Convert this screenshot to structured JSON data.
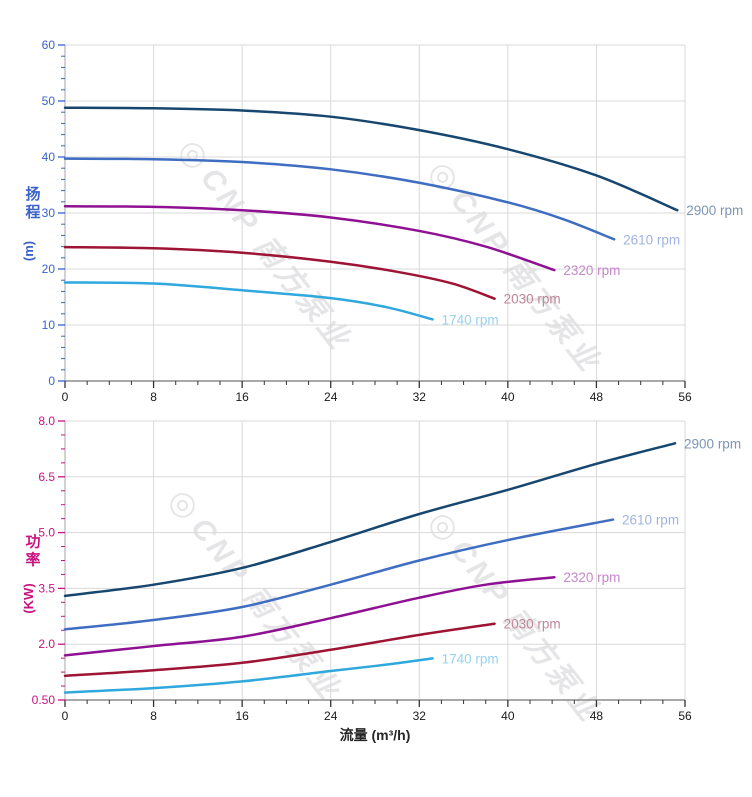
{
  "watermark": {
    "logo_glyph": "◎",
    "text": "CNP 南方泵业"
  },
  "chart_data": [
    {
      "type": "line",
      "title": "",
      "xlabel": "",
      "ylabel": "扬程",
      "ylabel_unit": "(m)",
      "xlim": [
        0,
        56
      ],
      "ylim": [
        0,
        60
      ],
      "grid": true,
      "legend_position": "curve-end-labels",
      "axis_accent": "#3a62c8",
      "x_tick_color": "#1a1a1a",
      "x_major_ticks": [
        0,
        8,
        16,
        24,
        32,
        40,
        48,
        56
      ],
      "x_tick_labels": [
        "0",
        "8",
        "16",
        "24",
        "32",
        "40",
        "48",
        "56"
      ],
      "x_minor_step": 2,
      "y_major_ticks": [
        0,
        10,
        20,
        30,
        40,
        50,
        60
      ],
      "y_tick_labels": [
        "0",
        "10",
        "20",
        "30",
        "40",
        "50",
        "60"
      ],
      "y_minor_step": 2,
      "series": [
        {
          "name": "2900 rpm",
          "color": "#17476f",
          "label_color": "#7d95b5",
          "points": [
            [
              0,
              48.8
            ],
            [
              8,
              48.7
            ],
            [
              16,
              48.3
            ],
            [
              24,
              47.2
            ],
            [
              32,
              44.8
            ],
            [
              40,
              41.4
            ],
            [
              48,
              36.7
            ],
            [
              55.3,
              30.5
            ]
          ]
        },
        {
          "name": "2610 rpm",
          "color": "#3f6dc1",
          "label_color": "#9fb3e1",
          "points": [
            [
              0,
              39.7
            ],
            [
              8,
              39.6
            ],
            [
              16,
              39.1
            ],
            [
              24,
              37.8
            ],
            [
              32,
              35.4
            ],
            [
              40,
              31.9
            ],
            [
              45,
              28.9
            ],
            [
              49.6,
              25.3
            ]
          ]
        },
        {
          "name": "2320 rpm",
          "color": "#8f1193",
          "label_color": "#c687c9",
          "points": [
            [
              0,
              31.2
            ],
            [
              8,
              31.1
            ],
            [
              16,
              30.5
            ],
            [
              24,
              29.2
            ],
            [
              32,
              26.8
            ],
            [
              38,
              24.0
            ],
            [
              44.2,
              19.8
            ]
          ]
        },
        {
          "name": "2030 rpm",
          "color": "#9d1434",
          "label_color": "#bf8697",
          "points": [
            [
              0,
              23.9
            ],
            [
              8,
              23.7
            ],
            [
              16,
              22.9
            ],
            [
              24,
              21.3
            ],
            [
              30,
              19.5
            ],
            [
              35,
              17.4
            ],
            [
              38.8,
              14.7
            ]
          ]
        },
        {
          "name": "1740 rpm",
          "color": "#2fa8dd",
          "label_color": "#96d1ef",
          "points": [
            [
              0,
              17.6
            ],
            [
              8,
              17.4
            ],
            [
              16,
              16.2
            ],
            [
              24,
              14.8
            ],
            [
              29,
              13.2
            ],
            [
              33.2,
              11.0
            ]
          ]
        }
      ]
    },
    {
      "type": "line",
      "title": "",
      "xlabel": "流量 (m³/h)",
      "ylabel": "功率",
      "ylabel_unit": "(KW)",
      "xlim": [
        0,
        56
      ],
      "ylim": [
        0.5,
        8.0
      ],
      "grid": true,
      "legend_position": "curve-end-labels",
      "axis_accent": "#c81480",
      "x_tick_color": "#1a1a1a",
      "x_major_ticks": [
        0,
        8,
        16,
        24,
        32,
        40,
        48,
        56
      ],
      "x_tick_labels": [
        "0",
        "8",
        "16",
        "24",
        "32",
        "40",
        "48",
        "56"
      ],
      "x_minor_step": 2,
      "y_major_ticks": [
        0.5,
        2.0,
        3.5,
        5.0,
        6.5,
        8.0
      ],
      "y_tick_labels": [
        "0.50",
        "2.0",
        "3.5",
        "5.0",
        "6.5",
        "8.0"
      ],
      "y_minor_step": 0.375,
      "series": [
        {
          "name": "2900 rpm",
          "color": "#17476f",
          "label_color": "#7d95b5",
          "points": [
            [
              0,
              3.3
            ],
            [
              8,
              3.6
            ],
            [
              16,
              4.05
            ],
            [
              24,
              4.75
            ],
            [
              32,
              5.5
            ],
            [
              40,
              6.15
            ],
            [
              48,
              6.85
            ],
            [
              55.1,
              7.4
            ]
          ]
        },
        {
          "name": "2610 rpm",
          "color": "#3f6dc1",
          "label_color": "#9fb3e1",
          "points": [
            [
              0,
              2.4
            ],
            [
              8,
              2.65
            ],
            [
              16,
              3.0
            ],
            [
              24,
              3.6
            ],
            [
              32,
              4.25
            ],
            [
              40,
              4.8
            ],
            [
              49.5,
              5.35
            ]
          ]
        },
        {
          "name": "2320 rpm",
          "color": "#8f1193",
          "label_color": "#c687c9",
          "points": [
            [
              0,
              1.7
            ],
            [
              8,
              1.95
            ],
            [
              16,
              2.2
            ],
            [
              24,
              2.7
            ],
            [
              32,
              3.25
            ],
            [
              38,
              3.6
            ],
            [
              44.2,
              3.8
            ]
          ]
        },
        {
          "name": "2030 rpm",
          "color": "#9d1434",
          "label_color": "#bf8697",
          "points": [
            [
              0,
              1.15
            ],
            [
              8,
              1.3
            ],
            [
              16,
              1.5
            ],
            [
              24,
              1.85
            ],
            [
              32,
              2.25
            ],
            [
              38.8,
              2.55
            ]
          ]
        },
        {
          "name": "1740 rpm",
          "color": "#2fa8dd",
          "label_color": "#96d1ef",
          "points": [
            [
              0,
              0.7
            ],
            [
              8,
              0.82
            ],
            [
              16,
              1.0
            ],
            [
              24,
              1.28
            ],
            [
              29,
              1.45
            ],
            [
              33.2,
              1.62
            ]
          ]
        }
      ]
    }
  ],
  "style": {
    "grid_color": "#d9d9d9",
    "axis_line_color": "#b3b3b3",
    "x_axis_line_color": "#8c8c8c",
    "x_tick_mark_color": "#333333",
    "xlabel_color": "#262626"
  }
}
